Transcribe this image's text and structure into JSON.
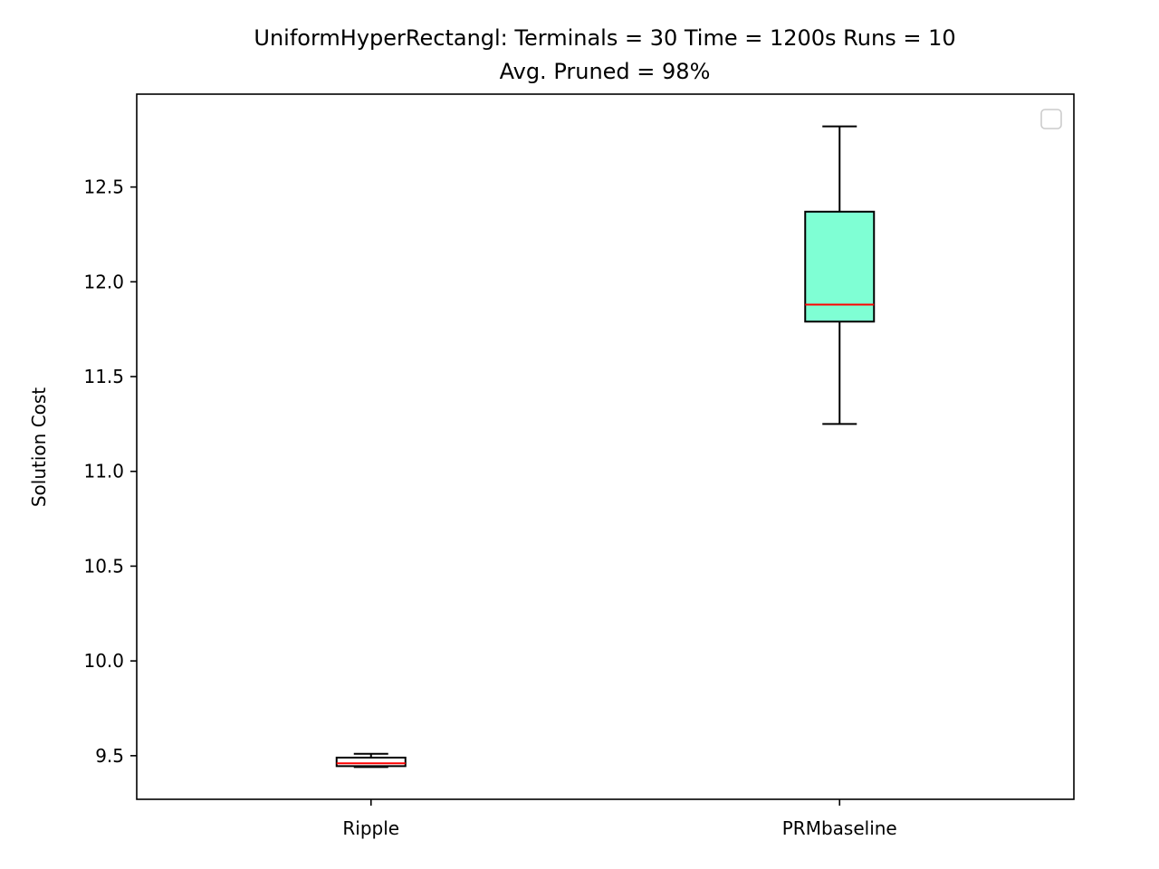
{
  "chart_data": {
    "type": "box",
    "title": "UniformHyperRectangl:  Terminals = 30  Time = 1200s  Runs = 10",
    "subtitle": "Avg. Pruned = 98%",
    "xlabel": "",
    "ylabel": "Solution Cost",
    "ylim": [
      9.27,
      12.99
    ],
    "yticks": [
      9.5,
      10.0,
      10.5,
      11.0,
      11.5,
      12.0,
      12.5
    ],
    "ytick_labels": [
      "9.5",
      "10.0",
      "10.5",
      "11.0",
      "11.5",
      "12.0",
      "12.5"
    ],
    "categories": [
      "Ripple",
      "PRMbaseline"
    ],
    "boxes": [
      {
        "category": "Ripple",
        "whisker_low": 9.44,
        "q1": 9.445,
        "median": 9.46,
        "q3": 9.49,
        "whisker_high": 9.51,
        "fill": "#ffffff"
      },
      {
        "category": "PRMbaseline",
        "whisker_low": 11.25,
        "q1": 11.79,
        "median": 11.88,
        "q3": 12.37,
        "whisker_high": 12.82,
        "fill": "#7fffd4"
      }
    ],
    "median_color": "#ff0000",
    "grid": false,
    "legend": {
      "position": "top-right",
      "entries": []
    }
  }
}
